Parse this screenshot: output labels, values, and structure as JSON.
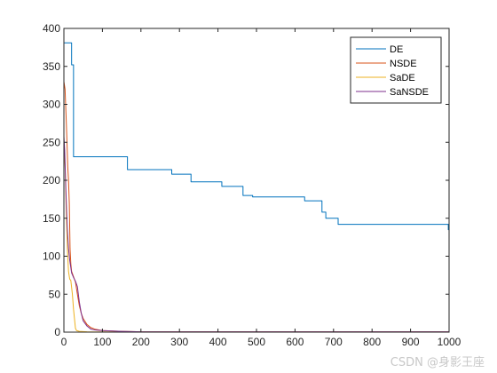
{
  "watermark": "CSDN @身影王座",
  "chart_data": {
    "type": "line",
    "title": "",
    "xlabel": "",
    "ylabel": "",
    "xlim": [
      0,
      1000
    ],
    "ylim": [
      0,
      400
    ],
    "xticks": [
      0,
      100,
      200,
      300,
      400,
      500,
      600,
      700,
      800,
      900,
      1000
    ],
    "yticks": [
      0,
      50,
      100,
      150,
      200,
      250,
      300,
      350,
      400
    ],
    "grid": false,
    "legend_position": "top-right",
    "series": [
      {
        "name": "DE",
        "color": "#0072BD",
        "step": true,
        "points": [
          [
            0,
            381
          ],
          [
            20,
            381
          ],
          [
            20,
            352
          ],
          [
            25,
            352
          ],
          [
            25,
            231
          ],
          [
            165,
            231
          ],
          [
            165,
            214
          ],
          [
            280,
            214
          ],
          [
            280,
            208
          ],
          [
            330,
            208
          ],
          [
            330,
            198
          ],
          [
            410,
            198
          ],
          [
            410,
            192
          ],
          [
            465,
            192
          ],
          [
            465,
            180
          ],
          [
            490,
            180
          ],
          [
            490,
            178
          ],
          [
            625,
            178
          ],
          [
            625,
            173
          ],
          [
            670,
            173
          ],
          [
            670,
            158
          ],
          [
            680,
            158
          ],
          [
            680,
            150
          ],
          [
            712,
            150
          ],
          [
            712,
            142
          ],
          [
            998,
            142
          ],
          [
            998,
            135
          ],
          [
            1000,
            135
          ]
        ]
      },
      {
        "name": "NSDE",
        "color": "#D95319",
        "step": false,
        "points": [
          [
            0,
            330
          ],
          [
            3,
            320
          ],
          [
            6,
            280
          ],
          [
            8,
            250
          ],
          [
            10,
            218
          ],
          [
            12,
            200
          ],
          [
            14,
            170
          ],
          [
            16,
            110
          ],
          [
            18,
            90
          ],
          [
            20,
            80
          ],
          [
            25,
            73
          ],
          [
            30,
            66
          ],
          [
            35,
            50
          ],
          [
            40,
            35
          ],
          [
            45,
            25
          ],
          [
            50,
            18
          ],
          [
            55,
            14
          ],
          [
            60,
            10
          ],
          [
            70,
            6
          ],
          [
            80,
            4
          ],
          [
            100,
            2
          ],
          [
            150,
            1
          ],
          [
            200,
            0.5
          ],
          [
            1000,
            0.5
          ]
        ]
      },
      {
        "name": "SaDE",
        "color": "#EDB120",
        "step": false,
        "points": [
          [
            0,
            240
          ],
          [
            3,
            220
          ],
          [
            6,
            160
          ],
          [
            9,
            110
          ],
          [
            12,
            80
          ],
          [
            15,
            70
          ],
          [
            18,
            68
          ],
          [
            22,
            50
          ],
          [
            25,
            30
          ],
          [
            28,
            15
          ],
          [
            30,
            5
          ],
          [
            33,
            2
          ],
          [
            40,
            1
          ],
          [
            60,
            0.5
          ],
          [
            100,
            0.3
          ],
          [
            1000,
            0.2
          ]
        ]
      },
      {
        "name": "SaNSDE",
        "color": "#7E2F8E",
        "step": false,
        "points": [
          [
            0,
            258
          ],
          [
            2,
            240
          ],
          [
            5,
            190
          ],
          [
            7,
            160
          ],
          [
            9,
            135
          ],
          [
            12,
            110
          ],
          [
            15,
            95
          ],
          [
            18,
            85
          ],
          [
            20,
            78
          ],
          [
            25,
            72
          ],
          [
            30,
            67
          ],
          [
            35,
            60
          ],
          [
            40,
            40
          ],
          [
            45,
            25
          ],
          [
            50,
            15
          ],
          [
            60,
            8
          ],
          [
            70,
            4
          ],
          [
            80,
            3
          ],
          [
            100,
            2
          ],
          [
            150,
            1
          ],
          [
            200,
            0.5
          ],
          [
            1000,
            0.5
          ]
        ]
      }
    ]
  }
}
